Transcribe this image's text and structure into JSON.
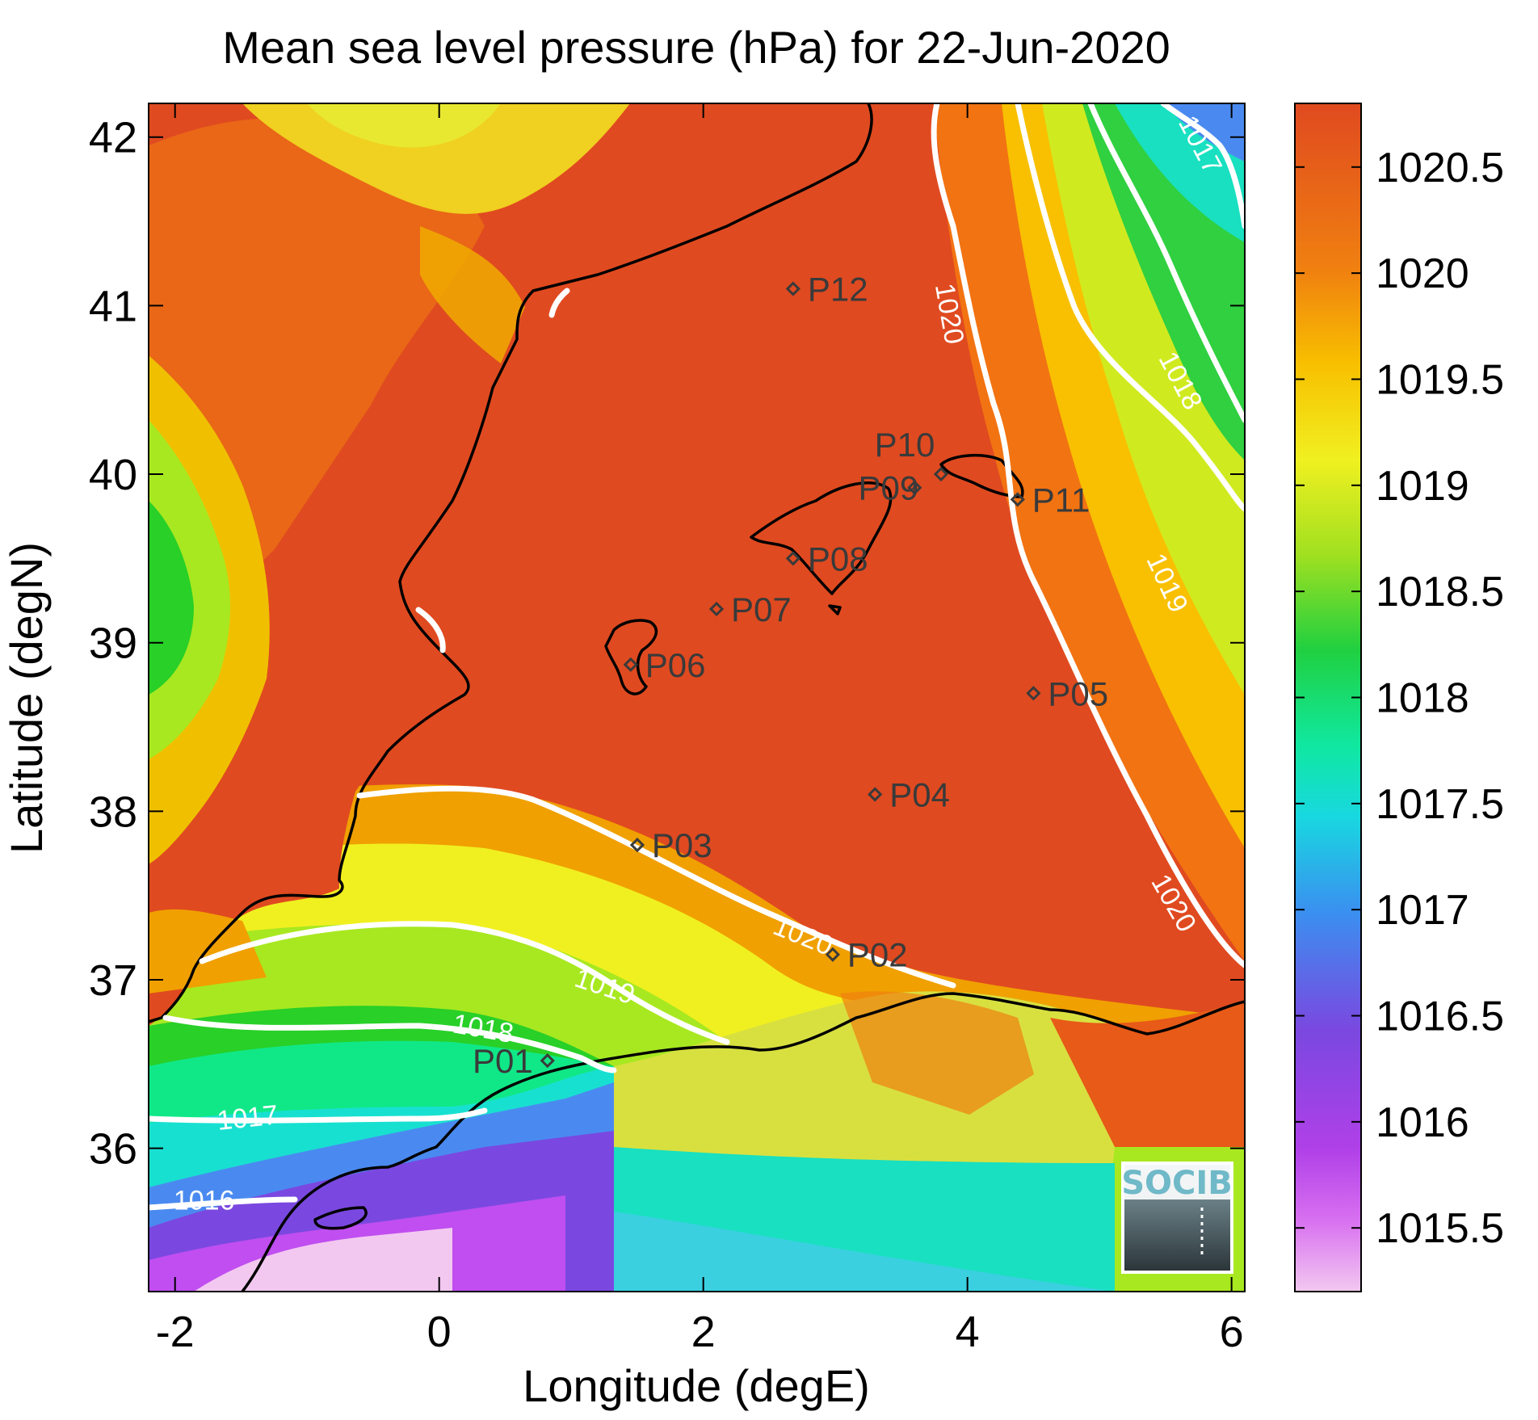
{
  "title": "Mean sea level pressure (hPa) for 22-Jun-2020",
  "xlabel": "Longitude (degE)",
  "ylabel": "Latitude (degN)",
  "logo_text": "SOCIB",
  "chart_data": {
    "type": "heatmap",
    "title": "Mean sea level pressure (hPa) for 22-Jun-2020",
    "xlabel": "Longitude (degE)",
    "ylabel": "Latitude (degN)",
    "xlim": [
      -2.2,
      6.1
    ],
    "ylim": [
      35.15,
      42.2
    ],
    "xticks": [
      -2,
      0,
      2,
      4,
      6
    ],
    "xtick_labels": [
      "-2",
      "0",
      "2",
      "4",
      "6"
    ],
    "yticks": [
      36,
      37,
      38,
      39,
      40,
      41,
      42
    ],
    "ytick_labels": [
      "36",
      "37",
      "38",
      "39",
      "40",
      "41",
      "42"
    ],
    "colorbar": {
      "min": 1015.2,
      "max": 1020.8,
      "ticks": [
        1015.5,
        1016,
        1016.5,
        1017,
        1017.5,
        1018,
        1018.5,
        1019,
        1019.5,
        1020,
        1020.5
      ],
      "tick_labels": [
        "1015.5",
        "1016",
        "1016.5",
        "1017",
        "1017.5",
        "1018",
        "1018.5",
        "1019",
        "1019.5",
        "1020",
        "1020.5"
      ],
      "colors": [
        "#f2c8f0",
        "#c44ef0",
        "#7a40e0",
        "#3a90f0",
        "#18e0d0",
        "#10e888",
        "#28d028",
        "#a8e820",
        "#f0f020",
        "#f8b000",
        "#f07010",
        "#e04a20"
      ]
    },
    "stations": [
      {
        "name": "P01",
        "lon": 0.82,
        "lat": 36.52
      },
      {
        "name": "P02",
        "lon": 2.98,
        "lat": 37.15
      },
      {
        "name": "P03",
        "lon": 1.5,
        "lat": 37.8
      },
      {
        "name": "P04",
        "lon": 3.3,
        "lat": 38.1
      },
      {
        "name": "P05",
        "lon": 4.5,
        "lat": 38.7
      },
      {
        "name": "P06",
        "lon": 1.45,
        "lat": 38.87
      },
      {
        "name": "P07",
        "lon": 2.1,
        "lat": 39.2
      },
      {
        "name": "P08",
        "lon": 2.68,
        "lat": 39.5
      },
      {
        "name": "P09",
        "lon": 3.6,
        "lat": 39.92
      },
      {
        "name": "P10",
        "lon": 3.8,
        "lat": 40.0
      },
      {
        "name": "P11",
        "lon": 4.38,
        "lat": 39.85
      },
      {
        "name": "P12",
        "lon": 2.68,
        "lat": 41.1
      }
    ],
    "contour_labels": [
      {
        "text": "1020",
        "lon": 3.85,
        "lat": 40.95,
        "rot": 80
      },
      {
        "text": "1018",
        "lon": 5.6,
        "lat": 40.55,
        "rot": 62
      },
      {
        "text": "1017",
        "lon": 5.75,
        "lat": 41.95,
        "rot": 62
      },
      {
        "text": "1019",
        "lon": 5.5,
        "lat": 39.35,
        "rot": 65
      },
      {
        "text": "1020",
        "lon": 5.55,
        "lat": 37.45,
        "rot": 60
      },
      {
        "text": "1020",
        "lon": 2.75,
        "lat": 37.25,
        "rot": 22
      },
      {
        "text": "1019",
        "lon": 1.25,
        "lat": 36.95,
        "rot": 18
      },
      {
        "text": "1018",
        "lon": 0.33,
        "lat": 36.7,
        "rot": 10
      },
      {
        "text": "1017",
        "lon": -1.45,
        "lat": 36.17,
        "rot": -6
      },
      {
        "text": "1016",
        "lon": -1.78,
        "lat": 35.68,
        "rot": 0
      }
    ]
  }
}
